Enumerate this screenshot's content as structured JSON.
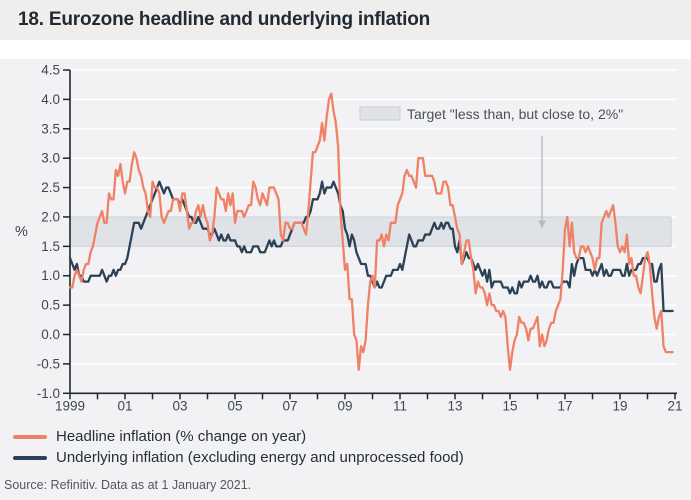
{
  "header": {
    "title": "18. Eurozone headline and underlying inflation"
  },
  "footer": {
    "source": "Source: Refinitiv. Data as at 1 January 2021."
  },
  "chart_data": {
    "type": "line",
    "title": "18. Eurozone headline and underlying inflation",
    "ylabel": "%",
    "ylim": [
      4.5,
      -1.0
    ],
    "y_ticks": [
      4.5,
      4.0,
      3.5,
      3.0,
      2.5,
      2.0,
      1.5,
      1.0,
      0.5,
      0.0,
      -0.5,
      -1.0
    ],
    "y_tick_labels": [
      "4.5",
      "4.0",
      "3.5",
      "3.0",
      "2.5",
      "2.0",
      "1.5",
      "1.0",
      "0.5",
      "0.0",
      "-0.5",
      "-1.0"
    ],
    "x_start_year": 1999,
    "x_end_year": 2021,
    "x_tick_interval_years": 1,
    "x_tick_labels": [
      "1999",
      "01",
      "03",
      "05",
      "07",
      "09",
      "11",
      "13",
      "15",
      "17",
      "19",
      "21"
    ],
    "points_per_year": 12,
    "grid": "horizontal-white",
    "legend_position": "bottom-left",
    "target_band": {
      "label": "Target \"less than, but close to, 2%\"",
      "from": 1.5,
      "to": 2.0,
      "fill": "#dfe3e8",
      "border": "#c9cfd6",
      "arrow_color": "#b4bac2"
    },
    "series": [
      {
        "name": "Headline inflation (% change on year)",
        "color": "#ef8266",
        "values": [
          0.8,
          0.8,
          1.0,
          1.1,
          1.0,
          0.9,
          1.1,
          1.2,
          1.2,
          1.4,
          1.5,
          1.7,
          1.9,
          2.0,
          2.1,
          1.9,
          1.9,
          2.4,
          2.3,
          2.3,
          2.8,
          2.7,
          2.9,
          2.6,
          2.4,
          2.6,
          2.6,
          2.9,
          3.1,
          3.0,
          2.8,
          2.7,
          2.5,
          2.4,
          2.1,
          2.0,
          2.6,
          2.5,
          2.5,
          2.4,
          2.0,
          1.9,
          2.0,
          2.1,
          2.1,
          2.3,
          2.3,
          2.3,
          2.1,
          2.4,
          2.4,
          2.1,
          1.8,
          1.9,
          1.9,
          2.1,
          2.2,
          2.0,
          2.2,
          2.0,
          1.9,
          1.6,
          1.7,
          2.0,
          2.5,
          2.4,
          2.3,
          2.3,
          2.1,
          2.4,
          2.2,
          2.4,
          1.9,
          2.1,
          2.1,
          2.1,
          2.0,
          2.1,
          2.2,
          2.2,
          2.6,
          2.5,
          2.3,
          2.2,
          2.4,
          2.3,
          2.2,
          2.5,
          2.5,
          2.5,
          2.4,
          2.3,
          1.7,
          1.6,
          1.9,
          1.9,
          1.8,
          1.8,
          1.9,
          1.9,
          1.9,
          1.9,
          1.8,
          1.7,
          2.1,
          2.6,
          3.1,
          3.1,
          3.2,
          3.3,
          3.6,
          3.3,
          3.7,
          4.0,
          4.1,
          3.8,
          3.6,
          3.2,
          2.1,
          1.6,
          1.1,
          1.2,
          0.6,
          0.6,
          0.0,
          -0.1,
          -0.6,
          -0.2,
          -0.3,
          -0.1,
          0.5,
          0.9,
          1.0,
          0.8,
          1.6,
          1.6,
          1.7,
          1.5,
          1.7,
          1.6,
          1.9,
          1.9,
          1.9,
          2.2,
          2.3,
          2.4,
          2.7,
          2.8,
          2.7,
          2.7,
          2.6,
          2.5,
          3.0,
          3.0,
          3.0,
          2.7,
          2.7,
          2.7,
          2.7,
          2.6,
          2.4,
          2.4,
          2.4,
          2.6,
          2.6,
          2.5,
          2.2,
          2.2,
          2.0,
          1.8,
          1.7,
          1.2,
          1.4,
          1.6,
          1.6,
          1.3,
          1.1,
          0.7,
          0.9,
          0.8,
          0.8,
          0.7,
          0.5,
          0.7,
          0.5,
          0.5,
          0.4,
          0.4,
          0.3,
          0.4,
          0.3,
          -0.2,
          -0.6,
          -0.3,
          -0.1,
          0.0,
          0.3,
          0.2,
          0.2,
          0.1,
          -0.1,
          0.1,
          0.1,
          0.2,
          0.3,
          -0.2,
          0.0,
          -0.2,
          -0.1,
          0.1,
          0.2,
          0.2,
          0.4,
          0.5,
          0.6,
          1.1,
          1.8,
          2.0,
          1.5,
          1.9,
          1.4,
          1.3,
          1.3,
          1.5,
          1.5,
          1.4,
          1.5,
          1.4,
          1.3,
          1.1,
          1.3,
          1.3,
          1.9,
          2.0,
          2.1,
          2.0,
          2.1,
          2.2,
          1.9,
          1.5,
          1.4,
          1.5,
          1.4,
          1.7,
          1.2,
          1.3,
          1.0,
          1.0,
          0.8,
          0.7,
          1.0,
          1.3,
          1.4,
          1.2,
          0.7,
          0.3,
          0.1,
          0.3,
          0.4,
          -0.2,
          -0.3,
          -0.3,
          -0.3,
          -0.3
        ]
      },
      {
        "name": "Underlying inflation (excluding energy and unprocessed food)",
        "color": "#2d4156",
        "values": [
          1.3,
          1.2,
          1.1,
          1.2,
          1.0,
          1.0,
          0.9,
          0.9,
          0.9,
          1.0,
          1.0,
          1.0,
          1.0,
          1.0,
          1.1,
          1.0,
          0.9,
          1.0,
          1.0,
          1.1,
          1.0,
          1.1,
          1.1,
          1.2,
          1.2,
          1.3,
          1.5,
          1.7,
          1.9,
          1.9,
          1.9,
          1.8,
          1.9,
          2.0,
          2.1,
          2.2,
          2.3,
          2.4,
          2.5,
          2.6,
          2.5,
          2.4,
          2.5,
          2.5,
          2.4,
          2.3,
          2.3,
          2.3,
          2.2,
          2.3,
          2.2,
          2.1,
          2.0,
          2.0,
          1.9,
          1.9,
          2.0,
          1.9,
          1.8,
          1.8,
          1.8,
          1.7,
          1.7,
          1.8,
          1.7,
          1.6,
          1.7,
          1.6,
          1.6,
          1.7,
          1.6,
          1.6,
          1.6,
          1.5,
          1.5,
          1.4,
          1.5,
          1.4,
          1.4,
          1.4,
          1.5,
          1.5,
          1.5,
          1.4,
          1.4,
          1.4,
          1.5,
          1.6,
          1.5,
          1.6,
          1.5,
          1.5,
          1.5,
          1.6,
          1.6,
          1.6,
          1.7,
          1.8,
          1.9,
          1.9,
          1.9,
          1.9,
          1.9,
          2.0,
          2.0,
          2.1,
          2.3,
          2.3,
          2.3,
          2.4,
          2.6,
          2.4,
          2.5,
          2.5,
          2.5,
          2.6,
          2.5,
          2.4,
          2.2,
          2.1,
          1.8,
          1.7,
          1.5,
          1.7,
          1.6,
          1.4,
          1.3,
          1.2,
          1.2,
          1.2,
          1.0,
          1.0,
          0.9,
          0.8,
          0.9,
          0.8,
          0.8,
          0.9,
          1.0,
          1.0,
          1.0,
          1.1,
          1.1,
          1.1,
          1.2,
          1.1,
          1.3,
          1.5,
          1.7,
          1.6,
          1.5,
          1.5,
          1.6,
          1.6,
          1.6,
          1.7,
          1.7,
          1.7,
          1.8,
          1.9,
          1.8,
          1.8,
          1.9,
          1.8,
          1.9,
          1.9,
          1.8,
          1.8,
          1.5,
          1.4,
          1.6,
          1.2,
          1.3,
          1.4,
          1.3,
          1.3,
          1.2,
          1.1,
          1.2,
          1.1,
          1.0,
          1.1,
          0.9,
          1.1,
          0.8,
          0.9,
          0.9,
          0.9,
          0.9,
          0.8,
          0.8,
          0.8,
          0.7,
          0.8,
          0.7,
          0.7,
          0.9,
          0.8,
          0.9,
          0.9,
          0.9,
          1.0,
          0.9,
          0.9,
          1.0,
          0.8,
          0.9,
          0.8,
          0.8,
          0.9,
          0.9,
          0.8,
          0.8,
          0.8,
          0.8,
          0.9,
          0.9,
          0.9,
          0.8,
          1.2,
          1.0,
          1.2,
          1.3,
          1.3,
          1.3,
          1.1,
          1.1,
          1.1,
          1.0,
          1.1,
          1.0,
          1.1,
          1.2,
          1.0,
          1.1,
          1.0,
          1.0,
          1.1,
          1.1,
          1.1,
          1.1,
          1.0,
          1.0,
          1.2,
          1.0,
          1.1,
          1.1,
          1.1,
          1.2,
          1.2,
          1.3,
          1.3,
          1.3,
          1.2,
          1.2,
          0.9,
          0.9,
          1.1,
          1.2,
          0.4,
          0.4,
          0.4,
          0.4,
          0.4
        ]
      }
    ]
  }
}
